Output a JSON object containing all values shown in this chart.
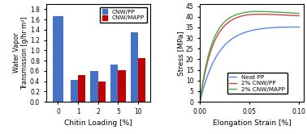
{
  "bar_categories": [
    0,
    1,
    2,
    5,
    10
  ],
  "bar_cnwpp": [
    1.67,
    0.43,
    0.6,
    0.73,
    1.35
  ],
  "bar_cnwmapp": [
    0.0,
    0.52,
    0.39,
    0.61,
    0.85
  ],
  "bar_color_pp": "#4472C4",
  "bar_color_mapp": "#C00000",
  "bar_ylabel": "Water Vapor\nTransmission [g/hr·m²]",
  "bar_xlabel": "Chitin Loading [%]",
  "bar_ylim": [
    0,
    1.9
  ],
  "bar_yticks": [
    0,
    0.2,
    0.4,
    0.6,
    0.8,
    1.0,
    1.2,
    1.4,
    1.6,
    1.8
  ],
  "bar_legend_pp": "CNW/PP",
  "bar_legend_mapp": "CNW/MAPP",
  "stress_xlim": [
    0,
    0.105
  ],
  "stress_ylim": [
    0,
    46
  ],
  "stress_xlabel": "Elongation Strain [%]",
  "stress_ylabel": "Stress [MPa]",
  "stress_yticks": [
    0,
    5,
    10,
    15,
    20,
    25,
    30,
    35,
    40,
    45
  ],
  "stress_xticks": [
    0,
    0.05,
    0.1
  ],
  "neat_pp_color": "#5588EE",
  "cnwpp_color": "#CC4444",
  "cnwmapp_color": "#44AA44",
  "legend_neat_pp": "Neat PP",
  "legend_2cnwpp": "2% CNW/PP",
  "legend_2cnwmapp": "2% CNW/MAPP"
}
